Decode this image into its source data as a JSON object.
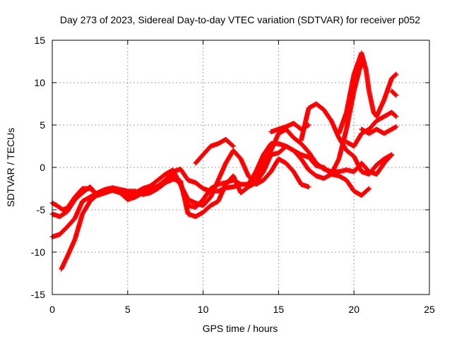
{
  "chart_data": {
    "type": "scatter",
    "title": "Day 273 of 2023, Sidereal Day-to-day VTEC variation (SDTVAR) for receiver p052",
    "xlabel": "GPS time / hours",
    "ylabel": "SDTVAR / TECUs",
    "xlim": [
      0,
      25
    ],
    "ylim": [
      -15,
      15
    ],
    "xticks": [
      "0",
      "5",
      "10",
      "15",
      "20",
      "25"
    ],
    "yticks": [
      "-15",
      "-10",
      "-5",
      "0",
      "5",
      "10",
      "15"
    ],
    "grid": true,
    "marker": "plus",
    "color": "#ff0000",
    "series": [
      {
        "points": [
          [
            0,
            -5.5
          ],
          [
            0.5,
            -5.8
          ],
          [
            1,
            -5.2
          ],
          [
            1.5,
            -3.8
          ],
          [
            2,
            -3.0
          ],
          [
            2.5,
            -2.3
          ],
          [
            3,
            -3.3
          ],
          [
            3.5,
            -3.0
          ],
          [
            4,
            -2.5
          ],
          [
            4.5,
            -2.8
          ],
          [
            5,
            -3.5
          ],
          [
            5.5,
            -3.2
          ],
          [
            6,
            -2.8
          ],
          [
            6.5,
            -2.6
          ],
          [
            7,
            -2.2
          ],
          [
            7.5,
            -1.5
          ],
          [
            8,
            -0.5
          ],
          [
            8.5,
            -0.2
          ],
          [
            9,
            -1.5
          ],
          [
            9.5,
            -1.8
          ],
          [
            10,
            -2.5
          ],
          [
            10.5,
            -2.8
          ],
          [
            11,
            -2.8
          ],
          [
            11.5,
            -2.4
          ],
          [
            12,
            -2.3
          ],
          [
            12.5,
            -2.0
          ],
          [
            13,
            -2.0
          ],
          [
            13.5,
            -0.5
          ],
          [
            14,
            1.5
          ],
          [
            14.5,
            2.8
          ],
          [
            15,
            2.8
          ],
          [
            15.5,
            2.5
          ],
          [
            16,
            2.0
          ],
          [
            16.5,
            1.0
          ],
          [
            17,
            -0.3
          ],
          [
            17.5,
            -1.0
          ],
          [
            18,
            -1.3
          ],
          [
            18.5,
            -0.8
          ],
          [
            19,
            1.0
          ],
          [
            19.5,
            4.5
          ],
          [
            20,
            9.0
          ],
          [
            20.5,
            12.5
          ]
        ]
      },
      {
        "points": [
          [
            0.6,
            -12
          ],
          [
            1,
            -10.5
          ],
          [
            1.5,
            -8.5
          ],
          [
            2,
            -5.5
          ],
          [
            2.5,
            -4.0
          ],
          [
            3,
            -3.2
          ],
          [
            3.5,
            -3.0
          ],
          [
            4,
            -2.7
          ],
          [
            4.5,
            -2.8
          ],
          [
            5,
            -3.3
          ],
          [
            5.5,
            -3.0
          ],
          [
            6,
            -2.5
          ],
          [
            6.5,
            -2.2
          ],
          [
            7,
            -1.5
          ],
          [
            7.5,
            -0.8
          ],
          [
            8,
            -0.3
          ],
          [
            8.5,
            -2.0
          ],
          [
            9,
            -4.5
          ],
          [
            9.5,
            -4.7
          ],
          [
            10,
            -3.8
          ],
          [
            10.5,
            -2.5
          ],
          [
            11,
            -2.0
          ],
          [
            11.5,
            -1.8
          ],
          [
            12,
            -1.5
          ],
          [
            12.5,
            -2.0
          ],
          [
            13,
            -2.0
          ],
          [
            13.5,
            -1.0
          ],
          [
            14,
            0.5
          ],
          [
            14.5,
            2.0
          ],
          [
            15,
            4.0
          ],
          [
            15.5,
            4.5
          ],
          [
            16,
            3.5
          ],
          [
            16.5,
            2.8
          ],
          [
            17,
            1.8
          ],
          [
            17.5,
            0.5
          ],
          [
            18,
            -0.2
          ],
          [
            18.5,
            -0.5
          ],
          [
            19,
            -0.5
          ],
          [
            19.5,
            -0.3
          ],
          [
            20,
            -0.5
          ],
          [
            20.5,
            0.5
          ],
          [
            21,
            -0.5
          ],
          [
            21.5,
            -0.8
          ],
          [
            22,
            0.5
          ],
          [
            22.5,
            1.5
          ]
        ]
      },
      {
        "points": [
          [
            0,
            -8.2
          ],
          [
            0.5,
            -7.9
          ],
          [
            1,
            -7.0
          ],
          [
            1.5,
            -6.0
          ],
          [
            2,
            -4.0
          ],
          [
            2.5,
            -3.5
          ],
          [
            3,
            -3.0
          ],
          [
            3.5,
            -2.6
          ],
          [
            4,
            -2.4
          ],
          [
            4.5,
            -2.6
          ],
          [
            5,
            -2.8
          ],
          [
            5.5,
            -2.8
          ],
          [
            6,
            -3.2
          ],
          [
            6.5,
            -3.0
          ],
          [
            7,
            -2.5
          ],
          [
            7.5,
            -1.8
          ],
          [
            8,
            -1.0
          ],
          [
            8.5,
            -2.0
          ],
          [
            9,
            -3.8
          ],
          [
            9.5,
            -4.2
          ],
          [
            10,
            -4.5
          ],
          [
            10.5,
            -3.5
          ],
          [
            11,
            -1.5
          ],
          [
            11.5,
            0.5
          ],
          [
            12,
            2.0
          ],
          [
            12.5,
            1.0
          ],
          [
            13,
            -1.0
          ],
          [
            13.5,
            -2.0
          ],
          [
            14,
            -1.5
          ],
          [
            14.5,
            -0.5
          ],
          [
            15,
            1.0
          ],
          [
            15.5,
            0.5
          ],
          [
            16,
            -0.5
          ],
          [
            16.5,
            -2.0
          ],
          [
            17,
            -2.3
          ]
        ]
      },
      {
        "points": [
          [
            0,
            -4.2
          ],
          [
            0.3,
            -4.5
          ],
          [
            0.7,
            -5.0
          ],
          [
            1,
            -4.8
          ],
          [
            1.5,
            -3.5
          ],
          [
            2,
            -2.5
          ],
          [
            2.5,
            -2.5
          ],
          [
            3,
            -3.2
          ],
          [
            3.5,
            -2.8
          ],
          [
            4,
            -2.7
          ],
          [
            4.5,
            -3.0
          ],
          [
            5,
            -3.8
          ],
          [
            5.5,
            -3.5
          ],
          [
            6,
            -3.0
          ],
          [
            6.5,
            -2.8
          ],
          [
            7,
            -2.4
          ],
          [
            7.5,
            -1.8
          ],
          [
            8,
            -1.4
          ],
          [
            8.5,
            -1.6
          ],
          [
            9,
            -5.5
          ],
          [
            9.5,
            -5.8
          ],
          [
            10,
            -5.3
          ],
          [
            10.5,
            -4.5
          ],
          [
            11,
            -4.0
          ],
          [
            11.5,
            -2.0
          ],
          [
            12,
            -1.0
          ],
          [
            12.5,
            -3.0
          ],
          [
            13,
            -2.3
          ],
          [
            13.5,
            -1.8
          ],
          [
            14,
            -0.5
          ],
          [
            14.5,
            1.5
          ],
          [
            15,
            1.7
          ],
          [
            15.5,
            2.5
          ],
          [
            16,
            2.0
          ],
          [
            16.5,
            1.5
          ],
          [
            17,
            1.2
          ],
          [
            17.5,
            0.2
          ],
          [
            18,
            0
          ],
          [
            18.5,
            -0.8
          ],
          [
            19,
            -1.0
          ],
          [
            19.5,
            -1.5
          ],
          [
            20,
            -2.8
          ],
          [
            20.5,
            -3.3
          ],
          [
            21,
            -2.5
          ]
        ]
      },
      {
        "points": [
          [
            16.5,
            3.2
          ],
          [
            17,
            7.0
          ],
          [
            17.5,
            7.5
          ],
          [
            18,
            6.8
          ],
          [
            18.5,
            5.5
          ],
          [
            19,
            3.5
          ],
          [
            19.5,
            2.0
          ],
          [
            20,
            1.3
          ],
          [
            20.5,
            -0.5
          ],
          [
            21,
            -0.8
          ],
          [
            21.5,
            0.3
          ],
          [
            22,
            1.0
          ],
          [
            22.5,
            1.5
          ]
        ]
      },
      {
        "points": [
          [
            14.5,
            4.2
          ],
          [
            15,
            4.5
          ],
          [
            15.5,
            4.8
          ],
          [
            16,
            5.2
          ],
          [
            16.5,
            4.5
          ],
          [
            17,
            5.0
          ]
        ]
      },
      {
        "points": [
          [
            9.5,
            0.5
          ],
          [
            10,
            1.5
          ],
          [
            10.5,
            2.5
          ],
          [
            11,
            2.8
          ],
          [
            11.5,
            3.3
          ],
          [
            12,
            2.5
          ]
        ]
      },
      {
        "points": [
          [
            19,
            4.0
          ],
          [
            19.5,
            6.5
          ],
          [
            20,
            11.0
          ],
          [
            20.5,
            13.5
          ],
          [
            20.8,
            11.5
          ],
          [
            21,
            9.0
          ],
          [
            21.3,
            6.5
          ],
          [
            21.5,
            6.0
          ],
          [
            22,
            8.0
          ],
          [
            22.5,
            10.5
          ],
          [
            22.8,
            11.0
          ]
        ]
      },
      {
        "points": [
          [
            19.5,
            3.0
          ],
          [
            20,
            2.5
          ],
          [
            20.5,
            4.0
          ],
          [
            21,
            4.5
          ],
          [
            21.5,
            5.5
          ],
          [
            22,
            6.0
          ],
          [
            22.5,
            6.5
          ],
          [
            22.8,
            6.0
          ]
        ]
      },
      {
        "points": [
          [
            20.5,
            4.5
          ],
          [
            21,
            4.0
          ],
          [
            21.5,
            4.5
          ],
          [
            22,
            4.0
          ],
          [
            22.5,
            4.5
          ],
          [
            22.8,
            4.8
          ]
        ]
      },
      {
        "points": [
          [
            22.5,
            9.0
          ],
          [
            22.8,
            8.5
          ]
        ]
      }
    ]
  }
}
